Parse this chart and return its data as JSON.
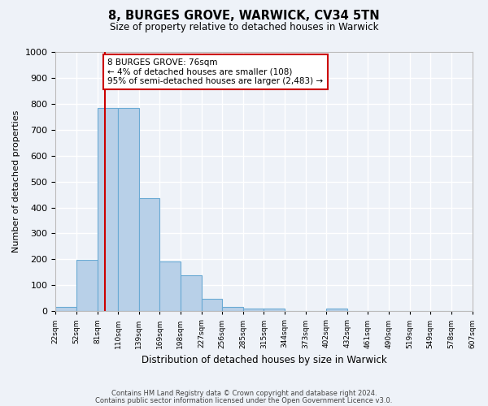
{
  "title": "8, BURGES GROVE, WARWICK, CV34 5TN",
  "subtitle": "Size of property relative to detached houses in Warwick",
  "xlabel": "Distribution of detached houses by size in Warwick",
  "ylabel": "Number of detached properties",
  "bar_values": [
    18,
    197,
    785,
    785,
    435,
    192,
    140,
    49,
    17,
    10,
    10,
    0,
    0,
    10,
    0,
    0,
    0,
    0,
    0,
    0
  ],
  "bin_labels": [
    "22sqm",
    "52sqm",
    "81sqm",
    "110sqm",
    "139sqm",
    "169sqm",
    "198sqm",
    "227sqm",
    "256sqm",
    "285sqm",
    "315sqm",
    "344sqm",
    "373sqm",
    "402sqm",
    "432sqm",
    "461sqm",
    "490sqm",
    "519sqm",
    "549sqm",
    "578sqm",
    "607sqm"
  ],
  "bar_color": "#b8d0e8",
  "bar_edge_color": "#6aaad4",
  "background_color": "#eef2f8",
  "grid_color": "#ffffff",
  "ylim": [
    0,
    1000
  ],
  "yticks": [
    0,
    100,
    200,
    300,
    400,
    500,
    600,
    700,
    800,
    900,
    1000
  ],
  "marker_sqm": 76,
  "annotation_line1": "8 BURGES GROVE: 76sqm",
  "annotation_line2": "← 4% of detached houses are smaller (108)",
  "annotation_line3": "95% of semi-detached houses are larger (2,483) →",
  "annotation_box_edgecolor": "#cc0000",
  "marker_line_color": "#cc0000",
  "footnote_line1": "Contains HM Land Registry data © Crown copyright and database right 2024.",
  "footnote_line2": "Contains public sector information licensed under the Open Government Licence v3.0."
}
